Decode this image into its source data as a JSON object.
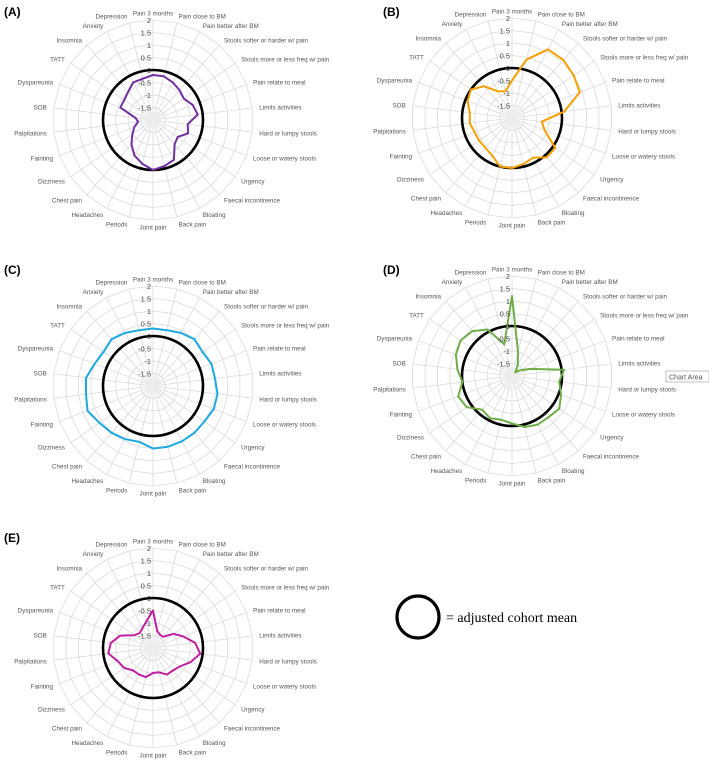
{
  "categories": [
    "Pain 3 months",
    "Pain close to BM",
    "Pain better after BM",
    "Stools softer or harder w/ pain",
    "Stools more or less freq w/ pain",
    "Pain relate to meal",
    "Limits activities",
    "Hard or lumpy stools",
    "Loose or watery stools",
    "Urgency",
    "Faecal incontinence",
    "Bloating",
    "Back pain",
    "Joint pain",
    "Periods",
    "Headaches",
    "Chest pain",
    "Dizziness",
    "Fainting",
    "Palpitations",
    "SOB",
    "Dyspareunia",
    "TATT",
    "Insomnia",
    "Anxiety",
    "Depression"
  ],
  "colors": {
    "A": "#7030a0",
    "B": "#f5a000",
    "C": "#1ca8e0",
    "D": "#70ad47",
    "E": "#c020a0",
    "mean": "#000000",
    "grid": "#dadada"
  },
  "legend": {
    "label": "= adjusted cohort mean"
  },
  "chart_area_tag": "Chart Area",
  "chart_data": [
    {
      "type": "radar",
      "panel": "(A)",
      "rticks": [
        "2",
        "1.5",
        "1",
        "0.5",
        "0",
        "-0.5",
        "-1",
        "-1.5"
      ],
      "rlim": [
        -2,
        2
      ],
      "mean": 0,
      "values": [
        -0.2,
        -0.2,
        -0.3,
        -0.4,
        -0.5,
        -0.3,
        -0.2,
        -0.6,
        -0.5,
        -0.8,
        -0.7,
        -0.2,
        -0.1,
        0,
        -0.2,
        -0.4,
        -0.7,
        -1,
        -1.2,
        -1.4,
        -1.3,
        -0.6,
        -0.6,
        -0.5,
        -0.3,
        -0.3
      ]
    },
    {
      "type": "radar",
      "panel": "(B)",
      "rticks": [
        "2",
        "1.5",
        "1",
        "0.5",
        "0",
        "-0.5",
        "-1",
        "-1.5"
      ],
      "rlim": [
        -2,
        2
      ],
      "mean": 0,
      "values": [
        -0.5,
        0.4,
        1.1,
        1.1,
        1.0,
        0.9,
        0.1,
        -0.8,
        -0.6,
        0.1,
        0.1,
        -0.2,
        -0.1,
        0,
        0,
        -0.3,
        -0.4,
        -0.4,
        -0.4,
        -0.3,
        -0.3,
        -0.1,
        0,
        -0.3,
        -0.8,
        -0.9
      ]
    },
    {
      "type": "radar",
      "panel": "(C)",
      "rticks": [
        "2",
        "1.5",
        "1",
        "0.5",
        "0",
        "-0.5",
        "-1",
        "-1.5"
      ],
      "rlim": [
        -2,
        2
      ],
      "mean": 0,
      "values": [
        0.3,
        0.3,
        0.4,
        0.5,
        0.4,
        0.5,
        0.5,
        0.6,
        0.6,
        0.5,
        0.5,
        0.5,
        0.5,
        0.5,
        0.3,
        0.4,
        0.5,
        0.6,
        0.8,
        0.7,
        0.7,
        0.5,
        0.4,
        0.5,
        0.4,
        0.3
      ]
    },
    {
      "type": "radar",
      "panel": "(D)",
      "rticks": [
        "2",
        "1.5",
        "1",
        "0.5",
        "0",
        "-0.5",
        "-1",
        "-1.5"
      ],
      "rlim": [
        -2,
        2
      ],
      "mean": 0,
      "values": [
        1.2,
        -1.0,
        -1.5,
        -1.8,
        -1.6,
        -1.2,
        0.1,
        -0.1,
        0.1,
        0.3,
        0.2,
        0.2,
        0.1,
        -0.1,
        -0.2,
        -0.1,
        -0.2,
        0.2,
        0.3,
        0,
        0.2,
        0.4,
        0.5,
        0.4,
        0.1,
        -0.7
      ]
    },
    {
      "type": "radar",
      "panel": "(E)",
      "rticks": [
        "2",
        "1.5",
        "1",
        "0.5",
        "0",
        "-0.5",
        "-1",
        "-1.5"
      ],
      "rlim": [
        -2,
        2
      ],
      "mean": 0,
      "values": [
        -0.5,
        -1.3,
        -1.4,
        -1.4,
        -1.0,
        -0.7,
        -0.3,
        -0.1,
        -0.4,
        -0.7,
        -0.8,
        -0.8,
        -1.0,
        -1.0,
        -0.8,
        -0.8,
        -0.8,
        -0.6,
        -0.5,
        -0.2,
        -0.3,
        -0.6,
        -1.1,
        -1.2,
        -1.1,
        -0.9
      ]
    }
  ]
}
